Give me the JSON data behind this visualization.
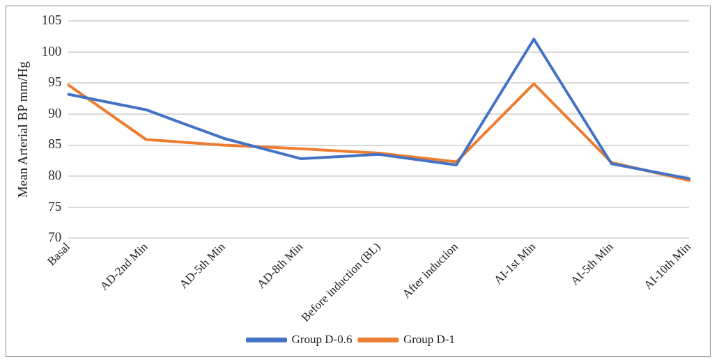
{
  "chart_data": {
    "type": "line",
    "ylabel": "Mean Arterial BP mm/Hg",
    "categories": [
      "Basal",
      "AD-2nd Min",
      "AD-5th Min",
      "AD-8th Min",
      "Before induction (BL)",
      "After induction",
      "AI-1st Min",
      "AI-5th Min",
      "AI-10th Min"
    ],
    "series": [
      {
        "name": "Group D-0.6",
        "color": "#4472c4",
        "values": [
          93.2,
          90.7,
          86.1,
          82.8,
          83.5,
          81.8,
          102.1,
          82.0,
          79.6
        ]
      },
      {
        "name": "Group D-1",
        "color": "#ed7d31",
        "values": [
          94.7,
          85.9,
          85.0,
          84.4,
          83.7,
          82.3,
          94.9,
          82.2,
          79.3
        ]
      }
    ],
    "ylim": [
      70,
      105
    ],
    "yticks": [
      70,
      75,
      80,
      85,
      90,
      95,
      100,
      105
    ],
    "grid": "y",
    "legend": "bottom",
    "marker": "none",
    "line_style": "solid"
  }
}
